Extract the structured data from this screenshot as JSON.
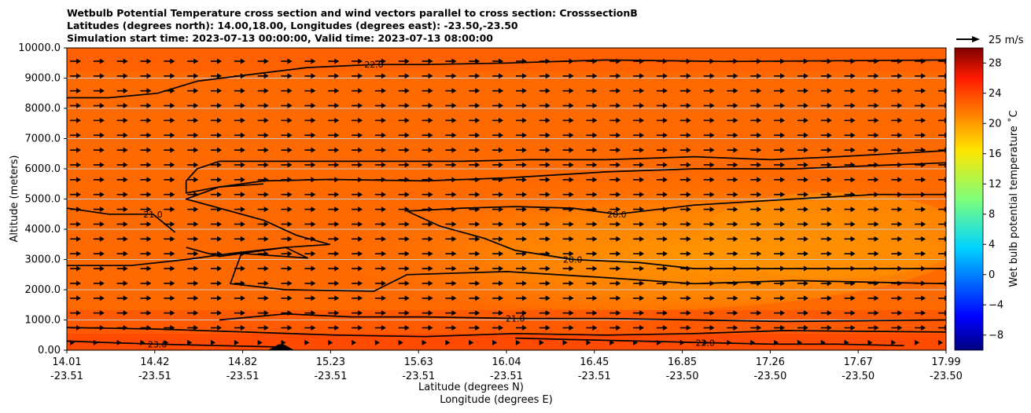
{
  "chart_data": {
    "type": "heatmap",
    "title_lines": [
      "Wetbulb Potential Temperature cross section and wind vectors parallel to cross section: CrosssectionB",
      "Latitudes (degrees north): 14.00,18.00, Longitudes (degrees east): -23.50,-23.50",
      "Simulation start time: 2023-07-13 00:00:00, Valid time: 2023-07-13 08:00:00"
    ],
    "xlabel_lat": "Latitude (degrees N)",
    "xlabel_lon": "Longitude (degrees E)",
    "ylabel": "Altitude (meters)",
    "xlim": [
      14.01,
      17.99
    ],
    "ylim": [
      0,
      10000
    ],
    "x_ticks": [
      {
        "lat": "14.01",
        "lon": "-23.51"
      },
      {
        "lat": "14.42",
        "lon": "-23.51"
      },
      {
        "lat": "14.82",
        "lon": "-23.51"
      },
      {
        "lat": "15.23",
        "lon": "-23.51"
      },
      {
        "lat": "15.63",
        "lon": "-23.51"
      },
      {
        "lat": "16.04",
        "lon": "-23.51"
      },
      {
        "lat": "16.45",
        "lon": "-23.51"
      },
      {
        "lat": "16.85",
        "lon": "-23.50"
      },
      {
        "lat": "17.26",
        "lon": "-23.50"
      },
      {
        "lat": "17.67",
        "lon": "-23.50"
      },
      {
        "lat": "17.99",
        "lon": "-23.50"
      }
    ],
    "y_ticks": [
      "0.00",
      "1000.0",
      "2000.0",
      "3000.0",
      "4000.0",
      "5000.0",
      "6000.0",
      "7000.0",
      "8000.0",
      "9000.0",
      "10000.0"
    ],
    "y_tick_values": [
      0,
      1000,
      2000,
      3000,
      4000,
      5000,
      6000,
      7000,
      8000,
      9000,
      10000
    ],
    "grid": "horizontal",
    "colorbar": {
      "label": "Wet bulb potential temperature ˚C",
      "min": -10,
      "max": 30,
      "ticks": [
        "−8",
        "−4",
        "0",
        "4",
        "8",
        "12",
        "16",
        "20",
        "24",
        "28"
      ],
      "tick_values": [
        -8,
        -4,
        0,
        4,
        8,
        12,
        16,
        20,
        24,
        28
      ]
    },
    "quiver_key": {
      "label": "25 m/s",
      "value": 25
    },
    "contours": [
      {
        "level": 22.0,
        "label": "22.0",
        "points": [
          [
            14.01,
            8350
          ],
          [
            14.2,
            8350
          ],
          [
            14.42,
            8500
          ],
          [
            14.6,
            8900
          ],
          [
            14.82,
            9100
          ],
          [
            15.1,
            9350
          ],
          [
            15.4,
            9450
          ],
          [
            15.63,
            9450
          ],
          [
            16.0,
            9500
          ],
          [
            16.45,
            9600
          ],
          [
            17.0,
            9550
          ],
          [
            17.99,
            9600
          ]
        ]
      },
      {
        "level": 21.0,
        "label": "",
        "points": [
          [
            14.7,
            6250
          ],
          [
            15.0,
            6250
          ],
          [
            15.4,
            6250
          ],
          [
            15.8,
            6250
          ],
          [
            16.1,
            6300
          ],
          [
            16.45,
            6300
          ],
          [
            16.85,
            6400
          ],
          [
            17.2,
            6300
          ],
          [
            17.5,
            6400
          ],
          [
            17.99,
            6600
          ]
        ]
      },
      {
        "level": 21.0,
        "label": "",
        "points": [
          [
            14.7,
            6250
          ],
          [
            14.6,
            6000
          ],
          [
            14.55,
            5600
          ],
          [
            14.55,
            5200
          ],
          [
            14.7,
            5400
          ],
          [
            14.9,
            5600
          ],
          [
            15.2,
            5650
          ],
          [
            15.63,
            5600
          ],
          [
            16.0,
            5700
          ],
          [
            16.45,
            5900
          ],
          [
            16.85,
            6000
          ],
          [
            17.3,
            6000
          ],
          [
            17.99,
            6200
          ]
        ]
      },
      {
        "level": 20.0,
        "label": "20.0",
        "points": [
          [
            15.55,
            4600
          ],
          [
            15.8,
            4700
          ],
          [
            16.04,
            4750
          ],
          [
            16.3,
            4700
          ],
          [
            16.5,
            4500
          ],
          [
            16.85,
            4800
          ],
          [
            17.3,
            5000
          ],
          [
            17.67,
            5150
          ],
          [
            17.99,
            5150
          ]
        ]
      },
      {
        "level": 21.0,
        "label": "21.0",
        "points": [
          [
            14.01,
            4700
          ],
          [
            14.2,
            4500
          ],
          [
            14.4,
            4500
          ],
          [
            14.45,
            4200
          ],
          [
            14.5,
            3900
          ]
        ]
      },
      {
        "level": 21.0,
        "label": "",
        "points": [
          [
            14.55,
            3400
          ],
          [
            14.7,
            3100
          ],
          [
            15.0,
            3400
          ],
          [
            15.2,
            3500
          ],
          [
            15.05,
            3800
          ],
          [
            14.9,
            4300
          ],
          [
            14.7,
            4700
          ],
          [
            14.55,
            5000
          ],
          [
            14.7,
            5400
          ],
          [
            14.9,
            5500
          ]
        ]
      },
      {
        "level": 20.0,
        "label": "20.0",
        "points": [
          [
            15.55,
            4600
          ],
          [
            15.7,
            4100
          ],
          [
            15.9,
            3700
          ],
          [
            16.04,
            3300
          ],
          [
            16.3,
            3000
          ],
          [
            16.6,
            2900
          ],
          [
            16.85,
            2700
          ],
          [
            17.3,
            2700
          ],
          [
            17.99,
            2700
          ]
        ]
      },
      {
        "level": 21.0,
        "label": "",
        "points": [
          [
            14.01,
            2800
          ],
          [
            14.3,
            2800
          ],
          [
            14.55,
            3000
          ],
          [
            14.75,
            3200
          ],
          [
            15.0,
            3400
          ],
          [
            15.1,
            3050
          ],
          [
            14.8,
            3200
          ],
          [
            14.75,
            2200
          ],
          [
            15.0,
            2000
          ],
          [
            15.4,
            1950
          ],
          [
            15.55,
            2500
          ],
          [
            16.0,
            2600
          ],
          [
            16.45,
            2400
          ],
          [
            16.85,
            2200
          ],
          [
            17.3,
            2300
          ],
          [
            17.99,
            2200
          ]
        ]
      },
      {
        "level": 22.0,
        "label": "",
        "points": [
          [
            14.01,
            750
          ],
          [
            14.42,
            700
          ],
          [
            14.82,
            600
          ],
          [
            15.23,
            500
          ],
          [
            15.63,
            450
          ],
          [
            16.04,
            550
          ],
          [
            16.45,
            500
          ],
          [
            16.85,
            550
          ],
          [
            17.26,
            650
          ],
          [
            17.99,
            600
          ]
        ]
      },
      {
        "level": 21.0,
        "label": "21.0",
        "points": [
          [
            14.7,
            1000
          ],
          [
            15.0,
            1200
          ],
          [
            15.3,
            1100
          ],
          [
            15.63,
            1100
          ],
          [
            16.04,
            1050
          ],
          [
            16.45,
            1050
          ],
          [
            16.85,
            1000
          ],
          [
            17.26,
            950
          ],
          [
            17.99,
            1000
          ]
        ]
      },
      {
        "level": 22.0,
        "label": "22.0",
        "points": [
          [
            16.04,
            400
          ],
          [
            16.3,
            350
          ],
          [
            16.6,
            300
          ],
          [
            16.9,
            250
          ],
          [
            17.2,
            200
          ],
          [
            17.5,
            200
          ],
          [
            17.8,
            150
          ]
        ]
      },
      {
        "level": 23.0,
        "label": "23.0",
        "points": [
          [
            14.01,
            300
          ],
          [
            14.2,
            250
          ],
          [
            14.42,
            200
          ],
          [
            14.7,
            150
          ],
          [
            15.0,
            100
          ]
        ]
      }
    ],
    "terrain": {
      "peak_lat": 14.98,
      "height_m": 200,
      "half_width_deg": 0.07
    },
    "wind_vectors": "eastward (parallel to cross section) at every grid point, magnitude ~10-25 m/s, weaker near surface"
  }
}
